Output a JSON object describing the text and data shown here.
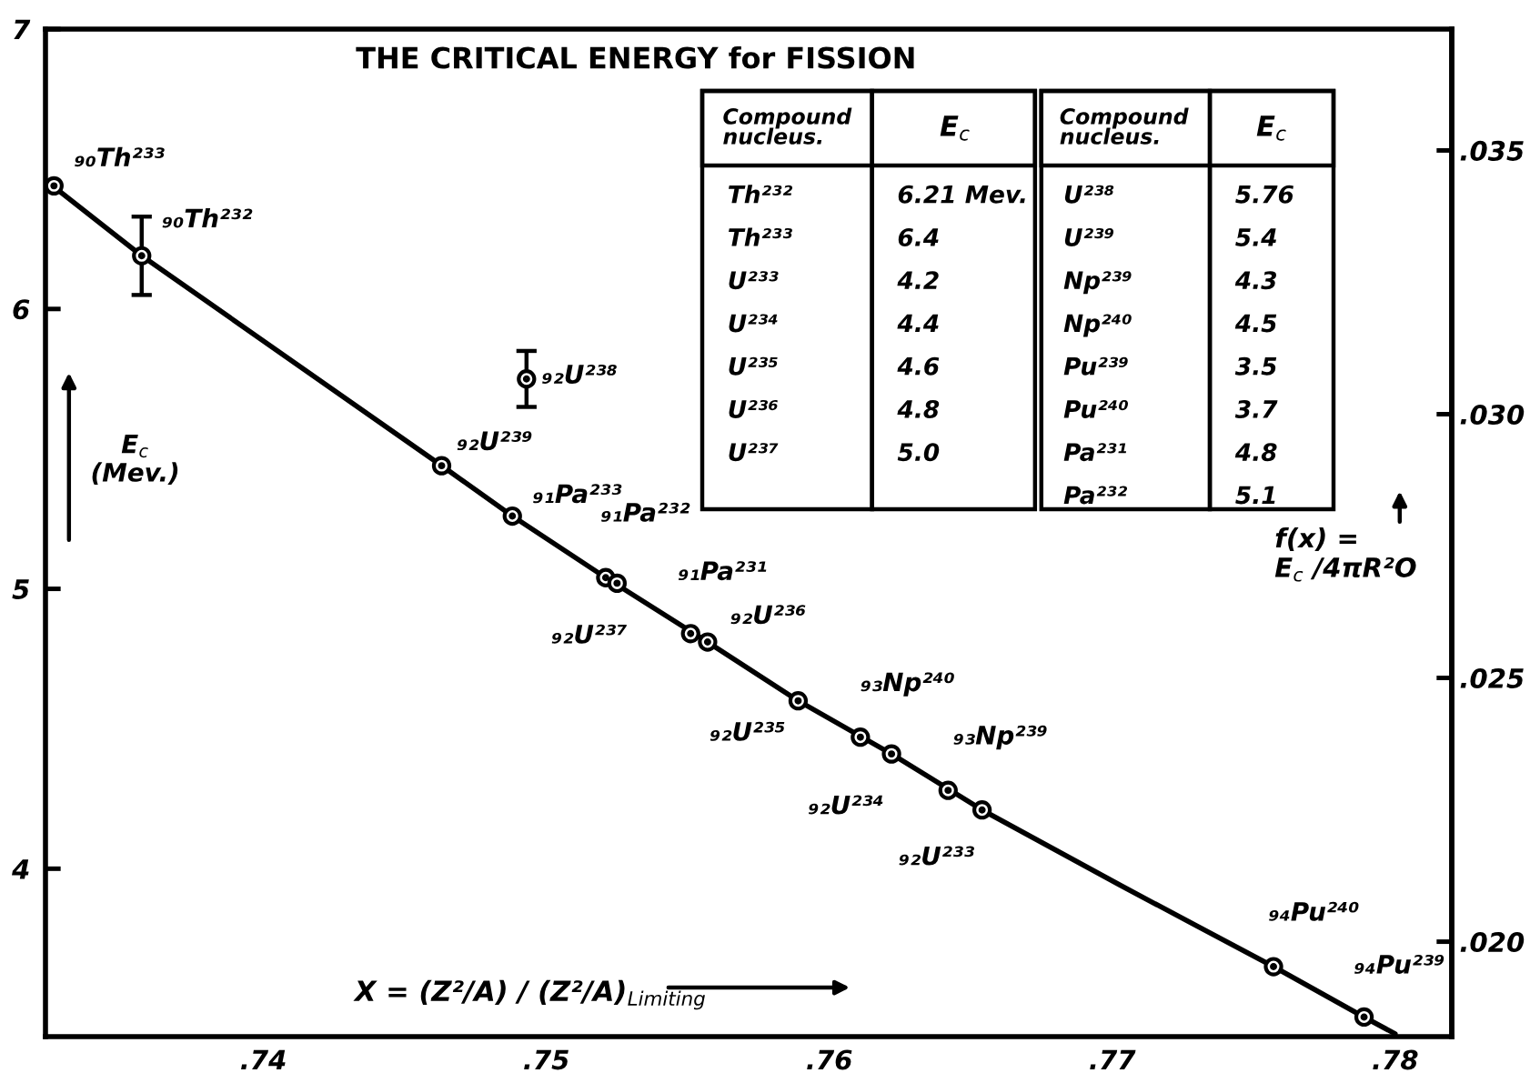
{
  "chart_data": {
    "type": "scatter",
    "title": "THE CRITICAL ENERGY for FISSION",
    "xlabel": "X = (Z²/A) / (Z²/A)$_{Limiting}$",
    "ylabel": "E$_{c}$\n(Mev.)",
    "y2label": "f(x) =\nE$_{c}$ /4πR²O",
    "xlim": [
      0.7323,
      0.782
    ],
    "xticks": [
      {
        "value": 0.74,
        "label": ".74"
      },
      {
        "value": 0.75,
        "label": ".75"
      },
      {
        "value": 0.76,
        "label": ".76"
      },
      {
        "value": 0.77,
        "label": ".77"
      },
      {
        "value": 0.78,
        "label": ".78"
      }
    ],
    "ylim": [
      3.4,
      7
    ],
    "yticks": [
      4,
      5,
      6,
      7
    ],
    "y2lim": [
      0.0182,
      0.0373
    ],
    "y2ticks": [
      {
        "value": 0.02,
        "label": ".020"
      },
      {
        "value": 0.025,
        "label": ".025"
      },
      {
        "value": 0.03,
        "label": ".030"
      },
      {
        "value": 0.035,
        "label": ".035"
      }
    ],
    "series": [
      {
        "type": "line",
        "color": "#000000",
        "x": [
          0.7323,
          0.7357,
          0.7463,
          0.7488,
          0.7521,
          0.7557,
          0.7589,
          0.7622,
          0.7654,
          0.7703,
          0.7757,
          0.7789,
          0.78
        ],
        "values": [
          6.46,
          6.19,
          5.44,
          5.26,
          5.04,
          4.81,
          4.6,
          4.41,
          4.21,
          3.94,
          3.65,
          3.47,
          3.41
        ]
      },
      {
        "type": "scatter",
        "color": "#000000",
        "marker": "circle",
        "x": [
          0.7326,
          0.7357,
          0.7493,
          0.7463,
          0.7488,
          0.7521,
          0.7525,
          0.7551,
          0.7557,
          0.7589,
          0.7611,
          0.7622,
          0.7642,
          0.7654,
          0.7757,
          0.7789
        ],
        "values": [
          6.44,
          6.19,
          5.75,
          5.44,
          5.26,
          5.04,
          5.02,
          4.84,
          4.81,
          4.6,
          4.47,
          4.41,
          4.28,
          4.21,
          3.65,
          3.47
        ],
        "errors": [
          null,
          0.14,
          0.1,
          null,
          null,
          null,
          null,
          null,
          null,
          null,
          null,
          null,
          null,
          null,
          null,
          null
        ]
      }
    ],
    "annotations": [
      {
        "text": "₉₀Th²³³",
        "x": 0.7326,
        "y": 6.44
      },
      {
        "text": "₉₀Th²³²",
        "x": 0.7357,
        "y": 6.19
      },
      {
        "text": "₉₂U²³⁸",
        "x": 0.7493,
        "y": 5.75
      },
      {
        "text": "₉₂U²³⁹",
        "x": 0.7463,
        "y": 5.44
      },
      {
        "text": "₉₁Pa²³³",
        "x": 0.7488,
        "y": 5.26
      },
      {
        "text": "₉₁Pa²³²",
        "x": 0.7521,
        "y": 5.04
      },
      {
        "text": "₉₂U²³⁷",
        "x": 0.7525,
        "y": 5.02
      },
      {
        "text": "₉₁Pa²³¹",
        "x": 0.7551,
        "y": 4.84
      },
      {
        "text": "₉₂U²³⁶",
        "x": 0.7557,
        "y": 4.81
      },
      {
        "text": "₉₂U²³⁵",
        "x": 0.7589,
        "y": 4.6
      },
      {
        "text": "₉₃Np²⁴⁰",
        "x": 0.7611,
        "y": 4.47
      },
      {
        "text": "₉₂U²³⁴",
        "x": 0.7622,
        "y": 4.41
      },
      {
        "text": "₉₃Np²³⁹",
        "x": 0.7642,
        "y": 4.28
      },
      {
        "text": "₉₂U²³³",
        "x": 0.7654,
        "y": 4.21
      },
      {
        "text": "₉₄Pu²⁴⁰",
        "x": 0.7757,
        "y": 3.65
      },
      {
        "text": "₉₄Pu²³⁹",
        "x": 0.7789,
        "y": 3.47
      },
      "Compound\nnucleus.",
      "E$_{c}$",
      "Compound\nnucleus.",
      "E$_{c}$",
      "Th²³²",
      "6.21 Mev.",
      "Th²³³",
      "6.4",
      "U²³³",
      "4.2",
      "U²³⁴",
      "4.4",
      "U²³⁵",
      "4.6",
      "U²³⁶",
      "4.8",
      "U²³⁷",
      "5.0",
      "U²³⁸",
      "5.76",
      "U²³⁹",
      "5.4",
      "Np²³⁹",
      "4.3",
      "Np²⁴⁰",
      "4.5",
      "Pu²³⁹",
      "3.5",
      "Pu²⁴⁰",
      "3.7",
      "Pa²³¹",
      "4.8",
      "Pa²³²",
      "5.1"
    ]
  }
}
